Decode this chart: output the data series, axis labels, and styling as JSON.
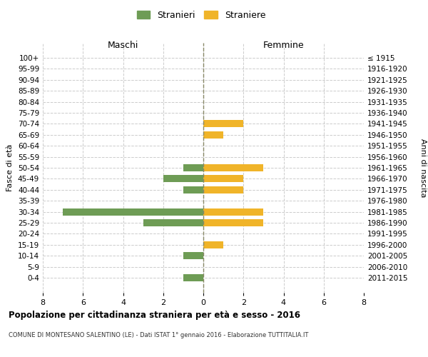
{
  "age_groups": [
    "100+",
    "95-99",
    "90-94",
    "85-89",
    "80-84",
    "75-79",
    "70-74",
    "65-69",
    "60-64",
    "55-59",
    "50-54",
    "45-49",
    "40-44",
    "35-39",
    "30-34",
    "25-29",
    "20-24",
    "15-19",
    "10-14",
    "5-9",
    "0-4"
  ],
  "birth_years": [
    "≤ 1915",
    "1916-1920",
    "1921-1925",
    "1926-1930",
    "1931-1935",
    "1936-1940",
    "1941-1945",
    "1946-1950",
    "1951-1955",
    "1956-1960",
    "1961-1965",
    "1966-1970",
    "1971-1975",
    "1976-1980",
    "1981-1985",
    "1986-1990",
    "1991-1995",
    "1996-2000",
    "2001-2005",
    "2006-2010",
    "2011-2015"
  ],
  "maschi": [
    0,
    0,
    0,
    0,
    0,
    0,
    0,
    0,
    0,
    0,
    1,
    2,
    1,
    0,
    7,
    3,
    0,
    0,
    1,
    0,
    1
  ],
  "femmine": [
    0,
    0,
    0,
    0,
    0,
    0,
    2,
    1,
    0,
    0,
    3,
    2,
    2,
    0,
    3,
    3,
    0,
    1,
    0,
    0,
    0
  ],
  "maschi_color": "#6e9c55",
  "femmine_color": "#f0b429",
  "title": "Popolazione per cittadinanza straniera per età e sesso - 2016",
  "subtitle": "COMUNE DI MONTESANO SALENTINO (LE) - Dati ISTAT 1° gennaio 2016 - Elaborazione TUTTITALIA.IT",
  "ylabel_left": "Fasce di età",
  "ylabel_right": "Anni di nascita",
  "xlabel_left": "Maschi",
  "xlabel_right": "Femmine",
  "legend_maschi": "Stranieri",
  "legend_femmine": "Straniere",
  "xlim": 8,
  "background_color": "#ffffff",
  "grid_color": "#cccccc"
}
